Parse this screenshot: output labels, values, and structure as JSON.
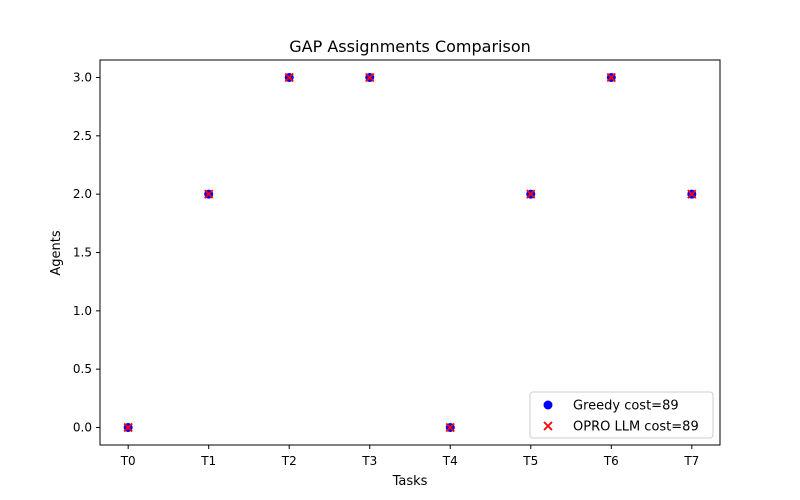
{
  "chart_data": {
    "type": "scatter",
    "title": "GAP Assignments Comparison",
    "xlabel": "Tasks",
    "ylabel": "Agents",
    "categories": [
      "T0",
      "T1",
      "T2",
      "T3",
      "T4",
      "T5",
      "T6",
      "T7"
    ],
    "yticks": [
      "0.0",
      "0.5",
      "1.0",
      "1.5",
      "2.0",
      "2.5",
      "3.0"
    ],
    "ylim": [
      -0.15,
      3.15
    ],
    "grid": false,
    "legend_position": "lower-right",
    "series": [
      {
        "name": "Greedy cost=89",
        "marker": "circle",
        "color": "#0000ff",
        "values": [
          0,
          2,
          3,
          3,
          0,
          2,
          3,
          2
        ]
      },
      {
        "name": "OPRO LLM cost=89",
        "marker": "x",
        "color": "#ff0000",
        "values": [
          0,
          2,
          3,
          3,
          0,
          2,
          3,
          2
        ]
      }
    ]
  }
}
